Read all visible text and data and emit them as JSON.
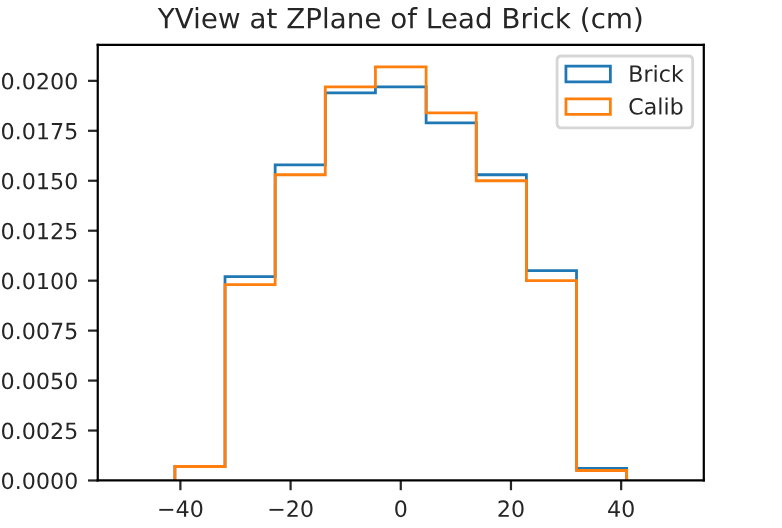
{
  "chart_data": {
    "type": "histogram",
    "title": "YView at ZPlane of Lead Brick (cm)",
    "bins": [
      -41,
      -31.9,
      -22.8,
      -13.7,
      -4.6,
      4.6,
      13.7,
      22.8,
      31.9,
      41
    ],
    "series": [
      {
        "name": "Brick",
        "color": "#1f77b4",
        "values": [
          0.0007,
          0.0102,
          0.0158,
          0.0194,
          0.0197,
          0.0179,
          0.0153,
          0.0105,
          0.0006
        ]
      },
      {
        "name": "Calib",
        "color": "#ff7f0e",
        "values": [
          0.0007,
          0.0098,
          0.0153,
          0.0197,
          0.0207,
          0.0184,
          0.015,
          0.01,
          0.0005
        ]
      }
    ],
    "xlim": [
      -55,
      55
    ],
    "xticks": [
      {
        "value": -40,
        "label": "−40"
      },
      {
        "value": -20,
        "label": "−20"
      },
      0,
      20,
      40
    ],
    "ylim": [
      0,
      0.0218
    ],
    "yticks": [
      {
        "value": 0,
        "label": "0.0000"
      },
      {
        "value": 0.0025,
        "label": "0.0025"
      },
      {
        "value": 0.005,
        "label": "0.0050"
      },
      {
        "value": 0.0075,
        "label": "0.0075"
      },
      {
        "value": 0.01,
        "label": "0.0100"
      },
      {
        "value": 0.0125,
        "label": "0.0125"
      },
      {
        "value": 0.015,
        "label": "0.0150"
      },
      {
        "value": 0.0175,
        "label": "0.0175"
      },
      {
        "value": 0.02,
        "label": "0.0200"
      }
    ],
    "grid": false,
    "legend": "top right"
  }
}
